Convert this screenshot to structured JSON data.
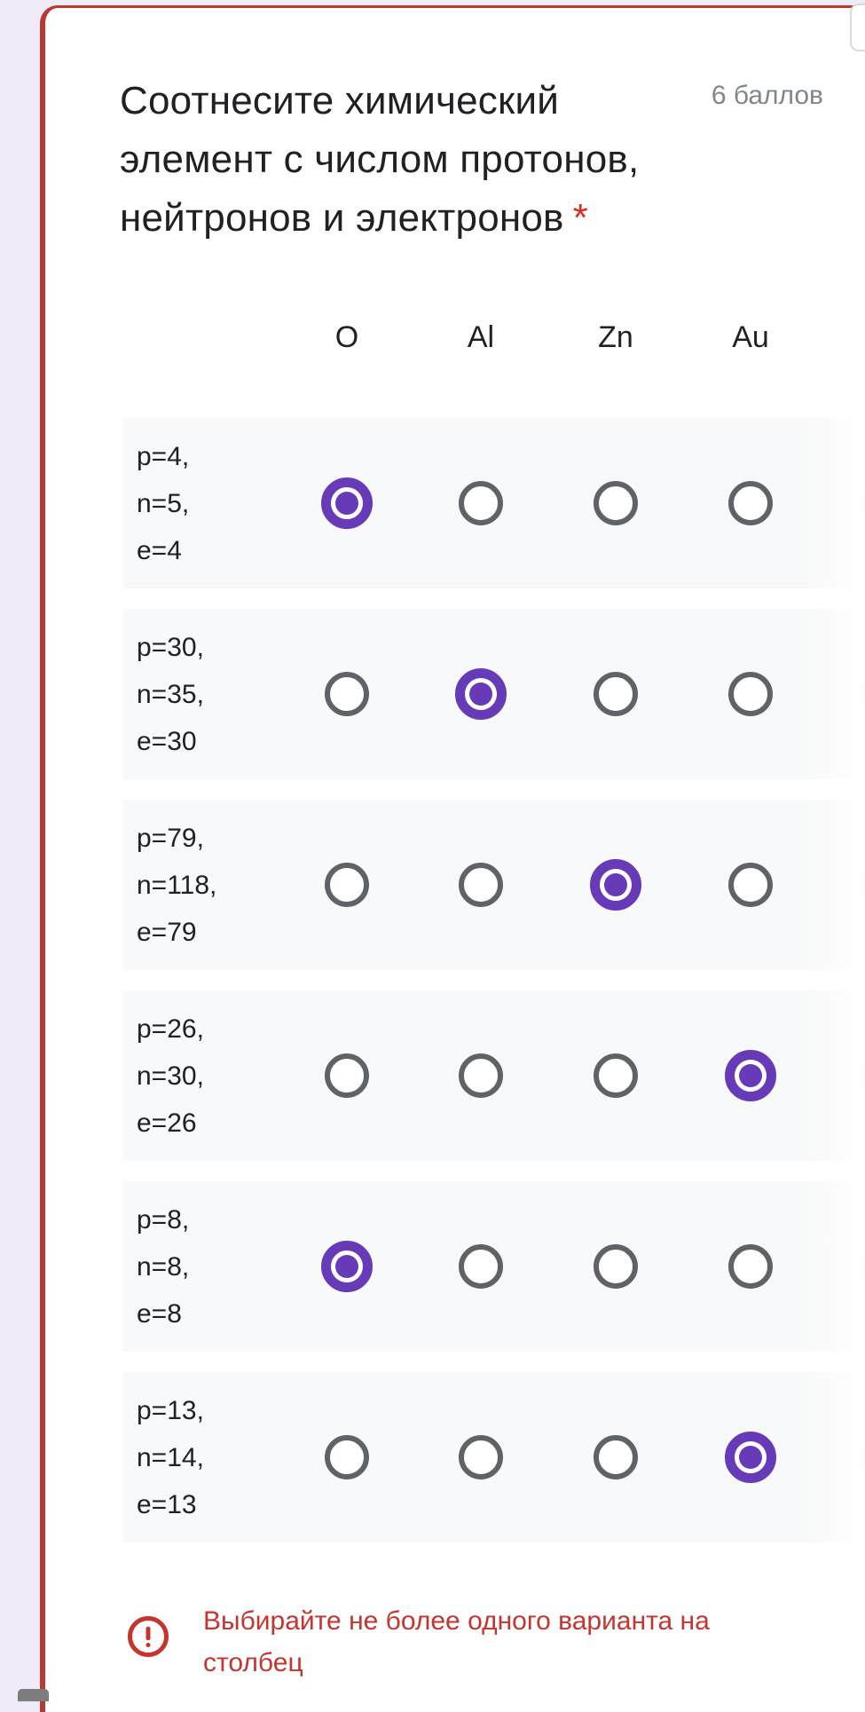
{
  "question": {
    "title_lines": [
      "Соотнесите химический",
      "элемент с числом протонов,",
      "нейтронов и электронов"
    ],
    "required_marker": "*",
    "points": "6 баллов"
  },
  "grid": {
    "columns": [
      "O",
      "Al",
      "Zn",
      "Au"
    ],
    "rows": [
      {
        "label_lines": [
          "p=4,",
          "n=5,",
          "e=4"
        ],
        "selected_column": 0
      },
      {
        "label_lines": [
          "p=30,",
          "n=35,",
          "e=30"
        ],
        "selected_column": 1
      },
      {
        "label_lines": [
          "p=79,",
          "n=118,",
          "e=79"
        ],
        "selected_column": 2
      },
      {
        "label_lines": [
          "p=26,",
          "n=30,",
          "e=26"
        ],
        "selected_column": 3
      },
      {
        "label_lines": [
          "p=8,",
          "n=8,",
          "e=8"
        ],
        "selected_column": 0
      },
      {
        "label_lines": [
          "p=13,",
          "n=14,",
          "e=13"
        ],
        "selected_column": 3
      }
    ]
  },
  "validation": {
    "message_lines": [
      "Выбирайте не более одного варианта на",
      "столбец"
    ]
  },
  "colors": {
    "page_background": "#f0ebf8",
    "card_background": "#ffffff",
    "error_border": "#b93a32",
    "error_text": "#c5342e",
    "selected_radio": "#673ab7",
    "unselected_radio": "#5f6368",
    "band_background": "#f8f9fa",
    "title_text": "#202124",
    "points_text": "#80868b",
    "required_asterisk": "#d93025"
  }
}
